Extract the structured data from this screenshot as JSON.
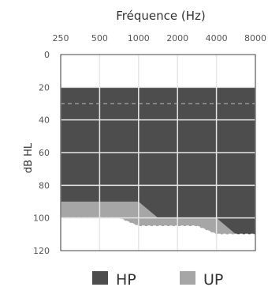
{
  "chart_data": {
    "type": "area",
    "title": "Fréquence (Hz)",
    "xlabel": "Fréquence (Hz)",
    "ylabel": "dB HL",
    "x_ticks": [
      "250",
      "500",
      "1000",
      "2000",
      "4000",
      "8000"
    ],
    "y_ticks": [
      "0",
      "20",
      "40",
      "60",
      "80",
      "100",
      "120"
    ],
    "ylim": [
      0,
      120
    ],
    "y_inverted": true,
    "grid": true,
    "reference_line": {
      "y": 30,
      "style": "dashed"
    },
    "series": [
      {
        "name": "HP",
        "color": "#4d4d4d",
        "points": [
          [
            250,
            20
          ],
          [
            8000,
            20
          ]
        ],
        "upper_bound": 110
      },
      {
        "name": "UP",
        "color": "#a6a6a6",
        "points": [
          [
            250,
            90
          ],
          [
            1000,
            90
          ],
          [
            1414,
            100
          ],
          [
            2000,
            100
          ],
          [
            4000,
            100
          ],
          [
            5657,
            110
          ],
          [
            8000,
            110
          ]
        ],
        "boundary_points": [
          [
            250,
            100
          ],
          [
            700,
            100
          ],
          [
            1000,
            105
          ],
          [
            2000,
            105
          ],
          [
            2830,
            105
          ],
          [
            4000,
            110
          ],
          [
            8000,
            110
          ]
        ],
        "upper_bound": 110
      }
    ],
    "legend": {
      "position": "bottom",
      "items": [
        {
          "label": "HP",
          "color": "#4d4d4d"
        },
        {
          "label": "UP",
          "color": "#a6a6a6"
        }
      ]
    }
  }
}
